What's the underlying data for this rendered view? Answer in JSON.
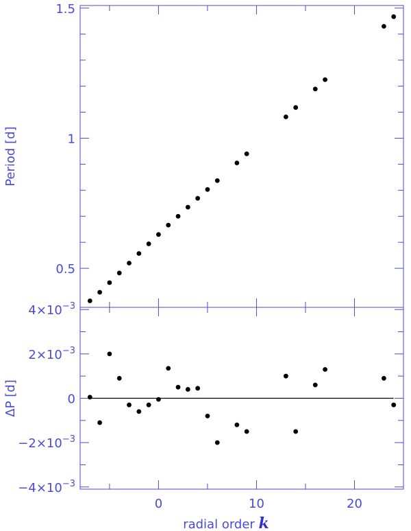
{
  "chart_data": [
    {
      "type": "scatter",
      "panel": "top",
      "ylabel": "Period [d]",
      "xlabel": "",
      "xlim": [
        -8,
        25
      ],
      "ylim": [
        0.35,
        1.51
      ],
      "xticks": [
        -5,
        0,
        5,
        10,
        15,
        20
      ],
      "yticks_labeled": [
        {
          "value": 0.5,
          "label": "0.5"
        },
        {
          "value": 1.0,
          "label": "1"
        },
        {
          "value": 1.5,
          "label": "1.5"
        }
      ],
      "yticks_minor": [
        0.6,
        0.7,
        0.8,
        0.9,
        1.1,
        1.2,
        1.3,
        1.4
      ],
      "x": [
        -7,
        -6,
        -5,
        -4,
        -3,
        -2,
        -1,
        0,
        1,
        2,
        3,
        4,
        5,
        6,
        8,
        9,
        13,
        14,
        16,
        17,
        23,
        24
      ],
      "y": [
        0.375,
        0.408,
        0.445,
        0.482,
        0.52,
        0.557,
        0.594,
        0.63,
        0.666,
        0.7,
        0.735,
        0.769,
        0.803,
        0.837,
        0.905,
        0.94,
        1.082,
        1.118,
        1.189,
        1.225,
        1.43,
        1.467
      ]
    },
    {
      "type": "scatter",
      "panel": "bottom",
      "ylabel": "ΔP [d]",
      "xlabel": "radial order",
      "xlabel_symbol": "k",
      "xlim": [
        -8,
        25
      ],
      "ylim": [
        -0.0041,
        0.0041
      ],
      "xticks_labeled": [
        {
          "value": 0,
          "label": "0"
        },
        {
          "value": 10,
          "label": "10"
        },
        {
          "value": 20,
          "label": "20"
        }
      ],
      "xticks_minor": [
        -5,
        5,
        15
      ],
      "yticks_labeled": [
        {
          "value": 0.004,
          "label": "4×10",
          "exp": "−3"
        },
        {
          "value": 0.002,
          "label": "2×10",
          "exp": "−3"
        },
        {
          "value": 0,
          "label": "0",
          "exp": ""
        },
        {
          "value": -0.002,
          "label": "−2×10",
          "exp": "−3"
        },
        {
          "value": -0.004,
          "label": "−4×10",
          "exp": "−3"
        }
      ],
      "yticks_minor": [
        0.003,
        0.001,
        -0.001,
        -0.003
      ],
      "reference_line": 0,
      "x": [
        -7,
        -6,
        -5,
        -4,
        -3,
        -2,
        -1,
        0,
        1,
        2,
        3,
        4,
        5,
        6,
        8,
        9,
        13,
        14,
        16,
        17,
        23,
        24
      ],
      "y": [
        5e-05,
        -0.0011,
        0.002,
        0.0009,
        -0.0003,
        -0.0006,
        -0.0003,
        -5e-05,
        0.00135,
        0.0005,
        0.0004,
        0.00045,
        -0.0008,
        -0.002,
        -0.0012,
        -0.0015,
        0.001,
        -0.0015,
        0.0006,
        0.0013,
        0.0009,
        -0.0003
      ]
    }
  ]
}
